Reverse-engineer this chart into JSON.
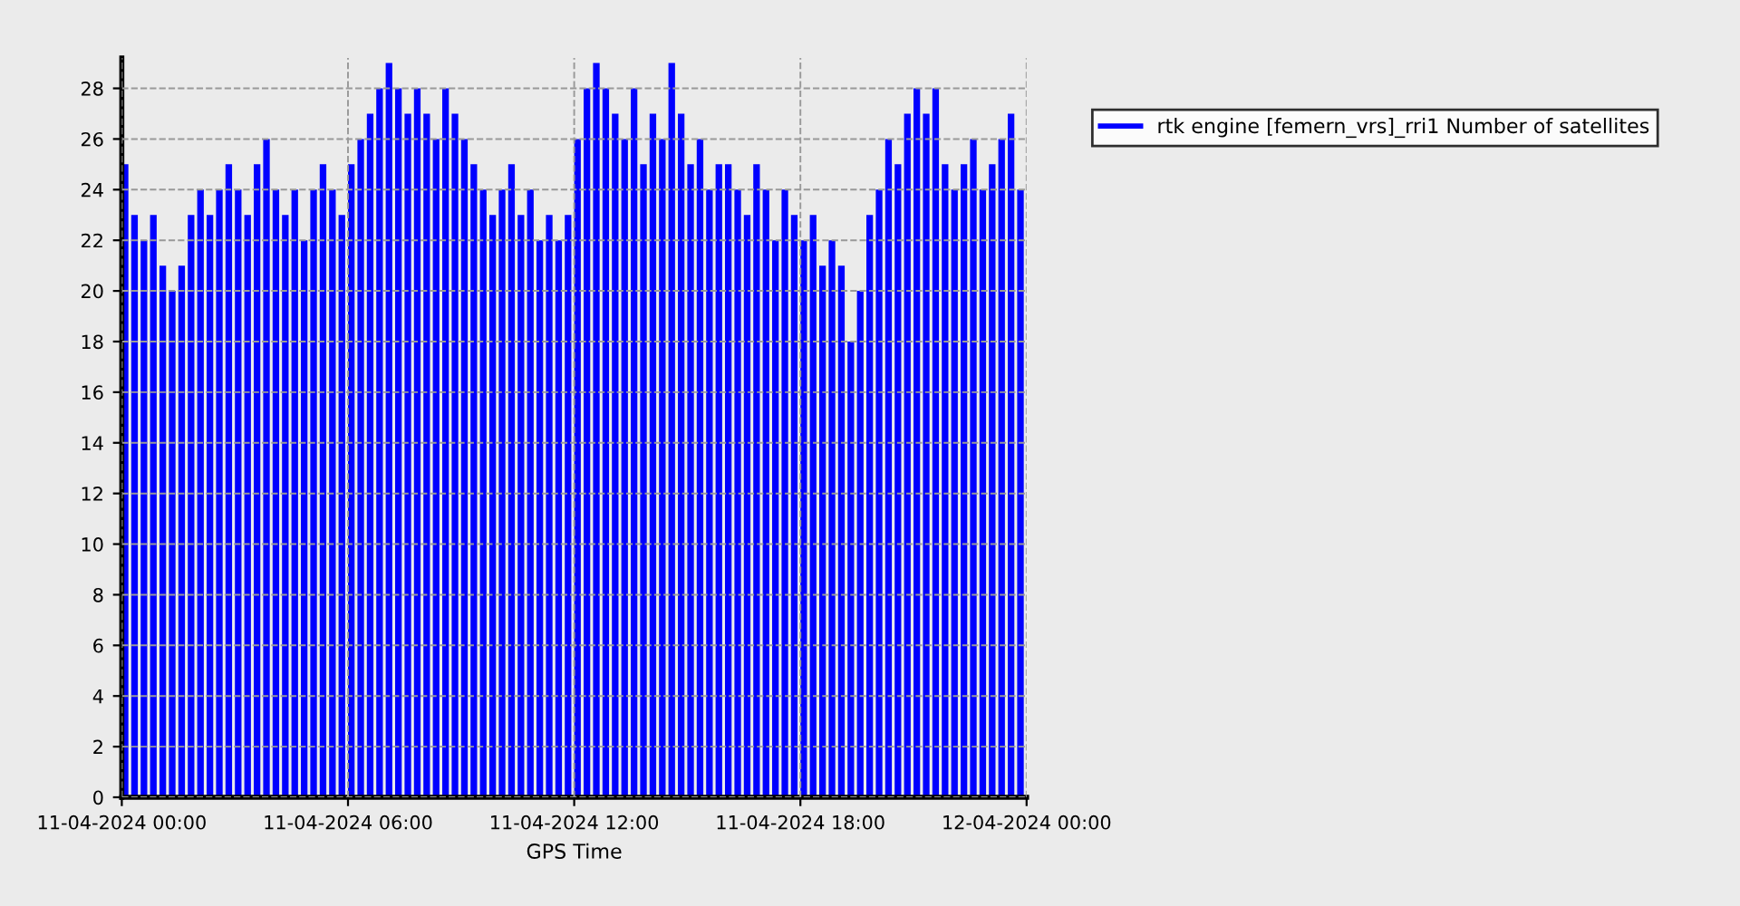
{
  "chart_data": {
    "type": "bar",
    "xlabel": "GPS Time",
    "x": [
      "2024-04-11T00:00",
      "2024-04-11T00:15",
      "2024-04-11T00:30",
      "2024-04-11T00:45",
      "2024-04-11T01:00",
      "2024-04-11T01:15",
      "2024-04-11T01:30",
      "2024-04-11T01:45",
      "2024-04-11T02:00",
      "2024-04-11T02:15",
      "2024-04-11T02:30",
      "2024-04-11T02:45",
      "2024-04-11T03:00",
      "2024-04-11T03:15",
      "2024-04-11T03:30",
      "2024-04-11T03:45",
      "2024-04-11T04:00",
      "2024-04-11T04:15",
      "2024-04-11T04:30",
      "2024-04-11T04:45",
      "2024-04-11T05:00",
      "2024-04-11T05:15",
      "2024-04-11T05:30",
      "2024-04-11T05:45",
      "2024-04-11T06:00",
      "2024-04-11T06:15",
      "2024-04-11T06:30",
      "2024-04-11T06:45",
      "2024-04-11T07:00",
      "2024-04-11T07:15",
      "2024-04-11T07:30",
      "2024-04-11T07:45",
      "2024-04-11T08:00",
      "2024-04-11T08:15",
      "2024-04-11T08:30",
      "2024-04-11T08:45",
      "2024-04-11T09:00",
      "2024-04-11T09:15",
      "2024-04-11T09:30",
      "2024-04-11T09:45",
      "2024-04-11T10:00",
      "2024-04-11T10:15",
      "2024-04-11T10:30",
      "2024-04-11T10:45",
      "2024-04-11T11:00",
      "2024-04-11T11:15",
      "2024-04-11T11:30",
      "2024-04-11T11:45",
      "2024-04-11T12:00",
      "2024-04-11T12:15",
      "2024-04-11T12:30",
      "2024-04-11T12:45",
      "2024-04-11T13:00",
      "2024-04-11T13:15",
      "2024-04-11T13:30",
      "2024-04-11T13:45",
      "2024-04-11T14:00",
      "2024-04-11T14:15",
      "2024-04-11T14:30",
      "2024-04-11T14:45",
      "2024-04-11T15:00",
      "2024-04-11T15:15",
      "2024-04-11T15:30",
      "2024-04-11T15:45",
      "2024-04-11T16:00",
      "2024-04-11T16:15",
      "2024-04-11T16:30",
      "2024-04-11T16:45",
      "2024-04-11T17:00",
      "2024-04-11T17:15",
      "2024-04-11T17:30",
      "2024-04-11T17:45",
      "2024-04-11T18:00",
      "2024-04-11T18:15",
      "2024-04-11T18:30",
      "2024-04-11T18:45",
      "2024-04-11T19:00",
      "2024-04-11T19:15",
      "2024-04-11T19:30",
      "2024-04-11T19:45",
      "2024-04-11T20:00",
      "2024-04-11T20:15",
      "2024-04-11T20:30",
      "2024-04-11T20:45",
      "2024-04-11T21:00",
      "2024-04-11T21:15",
      "2024-04-11T21:30",
      "2024-04-11T21:45",
      "2024-04-11T22:00",
      "2024-04-11T22:15",
      "2024-04-11T22:30",
      "2024-04-11T22:45",
      "2024-04-11T23:00",
      "2024-04-11T23:15",
      "2024-04-11T23:30",
      "2024-04-11T23:45"
    ],
    "series": [
      {
        "name": "rtk engine [femern_vrs]_rri1 Number of satellites",
        "color": "#0000ff",
        "values": [
          25,
          23,
          22,
          23,
          21,
          20,
          21,
          23,
          24,
          23,
          24,
          25,
          24,
          23,
          25,
          26,
          24,
          23,
          24,
          22,
          24,
          25,
          24,
          23,
          25,
          26,
          27,
          28,
          29,
          28,
          27,
          28,
          27,
          26,
          28,
          27,
          26,
          25,
          24,
          23,
          24,
          25,
          23,
          24,
          22,
          23,
          22,
          23,
          26,
          28,
          29,
          28,
          27,
          26,
          28,
          25,
          27,
          26,
          29,
          27,
          25,
          26,
          24,
          25,
          25,
          24,
          23,
          25,
          24,
          22,
          24,
          23,
          22,
          23,
          21,
          22,
          21,
          18,
          20,
          23,
          24,
          26,
          25,
          27,
          28,
          27,
          28,
          25,
          24,
          25,
          26,
          24,
          25,
          26,
          27,
          24
        ]
      }
    ],
    "xlim": [
      "2024-04-11T00:00",
      "2024-04-12T00:00"
    ],
    "xticks": [
      {
        "value": "2024-04-11T00:00",
        "label": "11-04-2024 00:00"
      },
      {
        "value": "2024-04-11T06:00",
        "label": "11-04-2024 06:00"
      },
      {
        "value": "2024-04-11T12:00",
        "label": "11-04-2024 12:00"
      },
      {
        "value": "2024-04-11T18:00",
        "label": "11-04-2024 18:00"
      },
      {
        "value": "2024-04-12T00:00",
        "label": "12-04-2024 00:00"
      }
    ],
    "ylim": [
      0,
      29.2
    ],
    "yticks": [
      0,
      2,
      4,
      6,
      8,
      10,
      12,
      14,
      16,
      18,
      20,
      22,
      24,
      26,
      28
    ],
    "grid": true,
    "legend": "top right"
  }
}
